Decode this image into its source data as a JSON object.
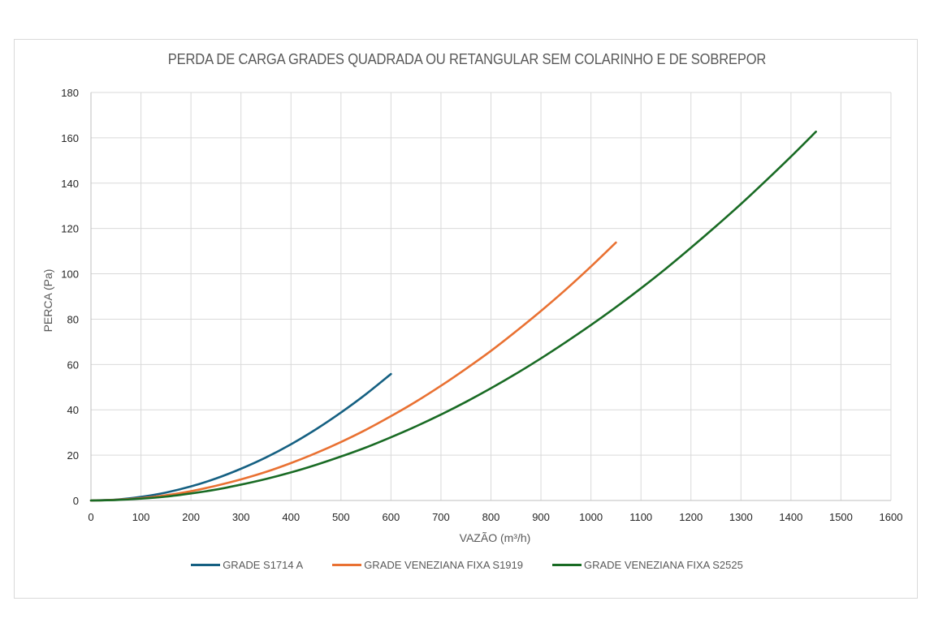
{
  "chart_data": {
    "type": "line",
    "title": "PERDA DE CARGA GRADES QUADRADA OU RETANGULAR SEM COLARINHO E DE SOBREPOR",
    "xlabel": "VAZÃO (m³/h)",
    "ylabel": "PERCA (Pa)",
    "xlim": [
      0,
      1600
    ],
    "ylim": [
      0,
      180
    ],
    "x_ticks": [
      "0",
      "100",
      "200",
      "300",
      "400",
      "500",
      "600",
      "700",
      "800",
      "900",
      "1000",
      "1100",
      "1200",
      "1300",
      "1400",
      "1500",
      "1600"
    ],
    "y_ticks": [
      "0",
      "20",
      "40",
      "60",
      "80",
      "100",
      "120",
      "140",
      "160",
      "180"
    ],
    "grid": true,
    "legend_position": "bottom",
    "series": [
      {
        "name": "GRADE S1714 A",
        "color": "#156082",
        "x": [
          0,
          50,
          100,
          150,
          200,
          250,
          300,
          350,
          400,
          450,
          500,
          550,
          600
        ],
        "y": [
          0,
          0.4,
          1.6,
          3.5,
          6.2,
          9.7,
          14.0,
          19.0,
          24.8,
          31.4,
          38.8,
          46.9,
          55.8
        ]
      },
      {
        "name": "GRADE VENEZIANA FIXA S1919",
        "color": "#E97132",
        "x": [
          0,
          50,
          100,
          150,
          200,
          250,
          300,
          350,
          400,
          450,
          500,
          550,
          600,
          650,
          700,
          750,
          800,
          850,
          900,
          950,
          1000,
          1050
        ],
        "y": [
          0,
          0.3,
          1.0,
          2.3,
          4.1,
          6.5,
          9.3,
          12.6,
          16.5,
          20.9,
          25.8,
          31.2,
          37.2,
          43.6,
          50.6,
          58.1,
          66.0,
          74.6,
          83.6,
          93.1,
          103.2,
          113.8
        ]
      },
      {
        "name": "GRADE VENEZIANA FIXA S2525",
        "color": "#196B24",
        "x": [
          0,
          50,
          100,
          150,
          200,
          250,
          300,
          350,
          400,
          450,
          500,
          550,
          600,
          650,
          700,
          750,
          800,
          850,
          900,
          950,
          1000,
          1050,
          1100,
          1150,
          1200,
          1250,
          1300,
          1350,
          1400,
          1450
        ],
        "y": [
          0,
          0.2,
          0.8,
          1.7,
          3.1,
          4.8,
          7.0,
          9.5,
          12.4,
          15.7,
          19.4,
          23.4,
          27.9,
          32.7,
          37.9,
          43.5,
          49.5,
          55.9,
          62.7,
          69.9,
          77.4,
          85.3,
          93.6,
          102.3,
          111.5,
          121.0,
          130.8,
          141.1,
          151.7,
          162.7
        ]
      }
    ]
  }
}
